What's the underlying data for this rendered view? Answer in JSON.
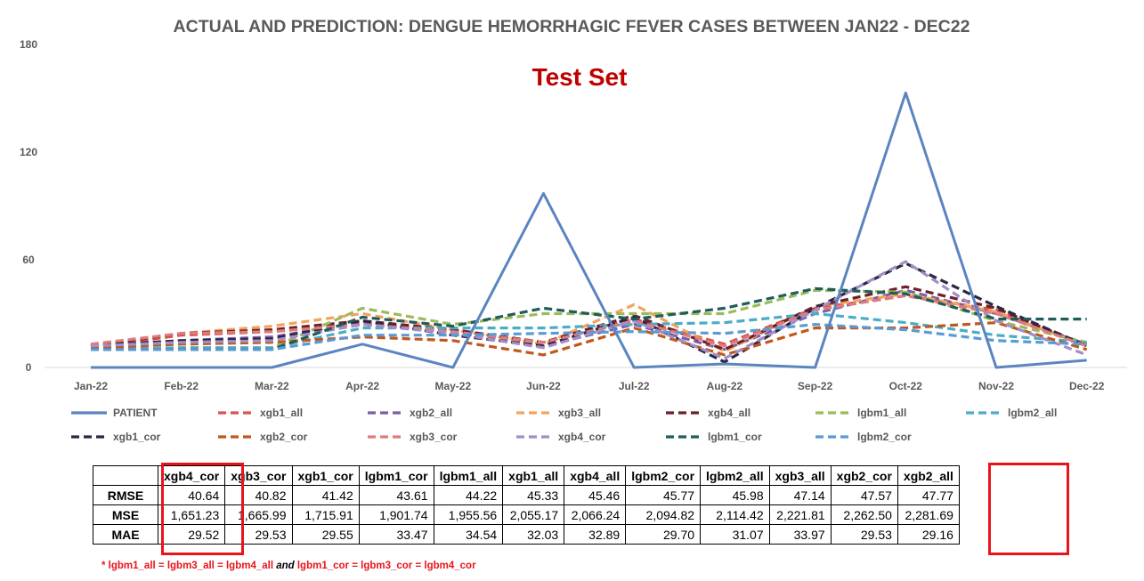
{
  "chart_data": {
    "type": "line",
    "title": "ACTUAL AND PREDICTION: DENGUE HEMORRHAGIC FEVER CASES BETWEEN JAN22 - DEC22",
    "subtitle": "Test Set",
    "xlabel": "",
    "ylabel": "",
    "ylim": [
      0,
      180
    ],
    "yticks": [
      "0",
      "60",
      "120",
      "180"
    ],
    "categories": [
      "Jan-22",
      "Feb-22",
      "Mar-22",
      "Apr-22",
      "May-22",
      "Jun-22",
      "Jul-22",
      "Aug-22",
      "Sep-22",
      "Oct-22",
      "Nov-22",
      "Dec-22"
    ],
    "grid": false,
    "legend_position": "bottom",
    "series": [
      {
        "name": "PATIENT",
        "color": "#5b85c0",
        "dash": "solid",
        "values": [
          0,
          0,
          0,
          13,
          0,
          97,
          0,
          2,
          0,
          153,
          0,
          4
        ]
      },
      {
        "name": "xgb1_all",
        "color": "#d9534f",
        "dash": "dash",
        "values": [
          11,
          18,
          20,
          24,
          21,
          14,
          27,
          13,
          33,
          40,
          32,
          12
        ]
      },
      {
        "name": "xgb2_all",
        "color": "#7a5ea8",
        "dash": "dash",
        "values": [
          12,
          15,
          17,
          25,
          20,
          12,
          24,
          10,
          30,
          43,
          30,
          13
        ]
      },
      {
        "name": "xgb3_all",
        "color": "#f4a35a",
        "dash": "dash",
        "values": [
          12,
          19,
          23,
          30,
          21,
          13,
          35,
          9,
          34,
          41,
          31,
          12
        ]
      },
      {
        "name": "xgb4_all",
        "color": "#6b2129",
        "dash": "dash",
        "values": [
          12,
          19,
          21,
          26,
          21,
          14,
          29,
          10,
          34,
          45,
          33,
          12
        ]
      },
      {
        "name": "lgbm1_all",
        "color": "#9bbb59",
        "dash": "dash",
        "values": [
          10,
          11,
          11,
          33,
          24,
          30,
          30,
          30,
          43,
          42,
          26,
          14
        ]
      },
      {
        "name": "lgbm2_all",
        "color": "#4bacc6",
        "dash": "dash",
        "values": [
          10,
          11,
          11,
          22,
          22,
          22,
          24,
          25,
          30,
          25,
          18,
          14
        ]
      },
      {
        "name": "xgb1_cor",
        "color": "#2e2645",
        "dash": "dash",
        "values": [
          12,
          15,
          16,
          26,
          18,
          12,
          28,
          3,
          33,
          58,
          34,
          12
        ]
      },
      {
        "name": "xgb2_cor",
        "color": "#c0581c",
        "dash": "dash",
        "values": [
          11,
          13,
          14,
          17,
          15,
          7,
          22,
          7,
          22,
          22,
          25,
          10
        ]
      },
      {
        "name": "xgb3_cor",
        "color": "#e07b7b",
        "dash": "dash",
        "values": [
          13,
          19,
          20,
          24,
          20,
          14,
          26,
          12,
          32,
          40,
          30,
          12
        ]
      },
      {
        "name": "xgb4_cor",
        "color": "#a28ec7",
        "dash": "dash",
        "values": [
          12,
          14,
          15,
          24,
          19,
          11,
          26,
          5,
          32,
          59,
          26,
          7
        ]
      },
      {
        "name": "lgbm1_cor",
        "color": "#1f5c5a",
        "dash": "dash",
        "values": [
          10,
          10,
          10,
          28,
          23,
          33,
          27,
          33,
          44,
          41,
          27,
          27
        ]
      },
      {
        "name": "lgbm2_cor",
        "color": "#5b9bd5",
        "dash": "dash",
        "values": [
          10,
          10,
          10,
          18,
          18,
          19,
          20,
          19,
          24,
          21,
          15,
          13
        ]
      }
    ]
  },
  "table": {
    "headers": [
      "",
      "xgb4_cor",
      "xgb3_cor",
      "xgb1_cor",
      "lgbm1_cor",
      "lgbm1_all",
      "xgb1_all",
      "xgb4_all",
      "lgbm2_cor",
      "lgbm2_all",
      "xgb3_all",
      "xgb2_cor",
      "xgb2_all"
    ],
    "rows": [
      {
        "metric": "RMSE",
        "values": [
          "40.64",
          "40.82",
          "41.42",
          "43.61",
          "44.22",
          "45.33",
          "45.46",
          "45.77",
          "45.98",
          "47.14",
          "47.57",
          "47.77"
        ]
      },
      {
        "metric": "MSE",
        "values": [
          "1,651.23",
          "1,665.99",
          "1,715.91",
          "1,901.74",
          "1,955.56",
          "2,055.17",
          "2,066.24",
          "2,094.82",
          "2,114.42",
          "2,221.81",
          "2,262.50",
          "2,281.69"
        ]
      },
      {
        "metric": "MAE",
        "values": [
          "29.52",
          "29.53",
          "29.55",
          "33.47",
          "34.54",
          "32.03",
          "32.89",
          "29.70",
          "31.07",
          "33.97",
          "29.53",
          "29.16"
        ]
      }
    ],
    "highlight_color": "#e8141b"
  },
  "footnote": {
    "part1": "* lgbm1_all = lgbm3_all = lgbm4_all ",
    "part2": "and",
    "part3": " lgbm1_cor = lgbm3_cor = lgbm4_cor"
  }
}
